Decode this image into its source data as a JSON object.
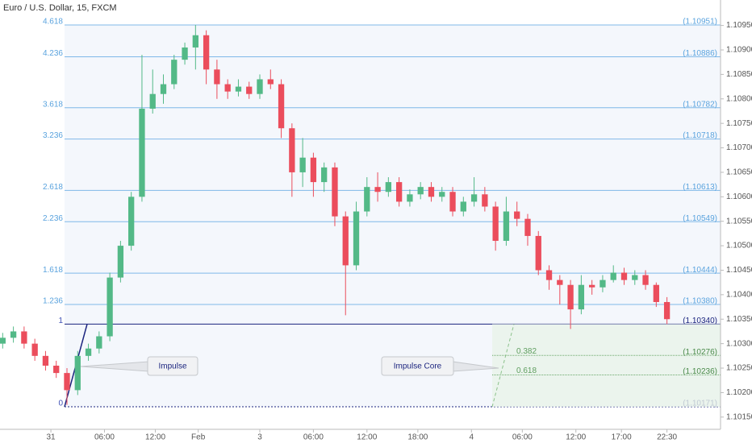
{
  "chart_data": {
    "type": "candlestick",
    "title": "Euro / U.S. Dollar, 15, FXCM",
    "x": [
      0,
      4,
      8,
      12,
      16,
      20,
      24,
      28,
      32,
      36,
      40,
      44,
      48,
      52,
      56,
      60,
      64,
      68,
      72,
      76,
      80,
      84,
      88,
      92,
      96,
      100,
      104,
      108,
      112,
      116,
      120,
      124,
      128,
      132,
      136,
      140,
      144,
      148,
      152,
      156,
      160,
      164,
      168,
      172,
      176,
      180,
      184,
      188,
      192,
      196,
      200,
      204,
      208,
      212,
      216,
      220,
      224,
      228,
      232,
      236,
      240,
      244,
      248
    ],
    "open": [
      1.103,
      1.10312,
      1.10325,
      1.103,
      1.10275,
      1.10255,
      1.1024,
      1.10205,
      1.10275,
      1.1029,
      1.10315,
      1.10435,
      1.105,
      1.106,
      1.1078,
      1.1081,
      1.1083,
      1.1088,
      1.10905,
      1.1093,
      1.1086,
      1.1083,
      1.10815,
      1.10825,
      1.1081,
      1.1084,
      1.1083,
      1.1074,
      1.1065,
      1.1068,
      1.1063,
      1.1066,
      1.1056,
      1.1046,
      1.1057,
      1.1062,
      1.1061,
      1.1063,
      1.1059,
      1.10605,
      1.1062,
      1.106,
      1.1061,
      1.1057,
      1.1059,
      1.10605,
      1.1058,
      1.1051,
      1.1057,
      1.10555,
      1.1052,
      1.1045,
      1.1043,
      1.1042,
      1.1037,
      1.1042,
      1.10415,
      1.1043,
      1.10445,
      1.1043,
      1.1044,
      1.1042,
      1.10385
    ],
    "high": [
      1.10322,
      1.10335,
      1.10335,
      1.1031,
      1.10285,
      1.10265,
      1.1025,
      1.10285,
      1.103,
      1.10325,
      1.10445,
      1.1051,
      1.1061,
      1.1089,
      1.1086,
      1.1085,
      1.1089,
      1.10915,
      1.10951,
      1.1094,
      1.1088,
      1.1084,
      1.1084,
      1.10835,
      1.1085,
      1.1086,
      1.1084,
      1.1075,
      1.1072,
      1.1069,
      1.1067,
      1.1067,
      1.1057,
      1.1059,
      1.1064,
      1.1065,
      1.1064,
      1.1064,
      1.10615,
      1.1063,
      1.1063,
      1.1062,
      1.1062,
      1.106,
      1.1064,
      1.1062,
      1.1059,
      1.106,
      1.1059,
      1.10565,
      1.1053,
      1.1046,
      1.1044,
      1.1043,
      1.1044,
      1.1043,
      1.1044,
      1.1046,
      1.10455,
      1.1045,
      1.1045,
      1.10425,
      1.10395
    ],
    "low": [
      1.1029,
      1.10302,
      1.1029,
      1.10265,
      1.10245,
      1.1023,
      1.10175,
      1.10195,
      1.10265,
      1.1028,
      1.10305,
      1.10425,
      1.1049,
      1.1059,
      1.1077,
      1.1079,
      1.1082,
      1.1087,
      1.1086,
      1.1083,
      1.108,
      1.108,
      1.10805,
      1.108,
      1.108,
      1.1082,
      1.1072,
      1.106,
      1.1062,
      1.106,
      1.1061,
      1.1054,
      1.10358,
      1.1045,
      1.1056,
      1.1059,
      1.106,
      1.1058,
      1.1058,
      1.10595,
      1.1059,
      1.1059,
      1.1056,
      1.1056,
      1.1058,
      1.1057,
      1.1049,
      1.105,
      1.1054,
      1.105,
      1.1044,
      1.1041,
      1.1038,
      1.1033,
      1.1036,
      1.104,
      1.10405,
      1.10425,
      1.1042,
      1.1042,
      1.1041,
      1.10375,
      1.1034
    ],
    "close": [
      1.10312,
      1.10325,
      1.103,
      1.10275,
      1.10255,
      1.1024,
      1.10205,
      1.10275,
      1.1029,
      1.10315,
      1.10435,
      1.105,
      1.106,
      1.1078,
      1.1081,
      1.1083,
      1.1088,
      1.10905,
      1.1093,
      1.1086,
      1.1083,
      1.10815,
      1.10825,
      1.1081,
      1.1084,
      1.1083,
      1.1074,
      1.1065,
      1.1068,
      1.1063,
      1.1066,
      1.1056,
      1.1046,
      1.1057,
      1.1062,
      1.1061,
      1.1063,
      1.1059,
      1.10605,
      1.1062,
      1.106,
      1.1061,
      1.1057,
      1.1059,
      1.10605,
      1.1058,
      1.1051,
      1.1057,
      1.10555,
      1.1052,
      1.1045,
      1.1043,
      1.1042,
      1.1037,
      1.1042,
      1.10415,
      1.1043,
      1.10445,
      1.1043,
      1.1044,
      1.1042,
      1.10385,
      1.1035
    ],
    "up_color": "#53b987",
    "down_color": "#eb4d5c",
    "xlim": [
      -1,
      268
    ],
    "xticks": [
      {
        "value": 18,
        "label": "31"
      },
      {
        "value": 38,
        "label": "06:00"
      },
      {
        "value": 57,
        "label": "12:00"
      },
      {
        "value": 73,
        "label": "Feb"
      },
      {
        "value": 96,
        "label": "3"
      },
      {
        "value": 116,
        "label": "06:00"
      },
      {
        "value": 136,
        "label": "12:00"
      },
      {
        "value": 155,
        "label": "18:00"
      },
      {
        "value": 175,
        "label": "4"
      },
      {
        "value": 194,
        "label": "06:00"
      },
      {
        "value": 214,
        "label": "12:00"
      },
      {
        "value": 231,
        "label": "17:00"
      },
      {
        "value": 248,
        "label": "22:30"
      }
    ],
    "ylim": [
      1.10125,
      1.11002
    ],
    "yticks": [
      {
        "value": 1.1015,
        "label": "1.10150"
      },
      {
        "value": 1.102,
        "label": "1.10200"
      },
      {
        "value": 1.1025,
        "label": "1.10250"
      },
      {
        "value": 1.103,
        "label": "1.10300"
      },
      {
        "value": 1.1035,
        "label": "1.10350"
      },
      {
        "value": 1.104,
        "label": "1.10400"
      },
      {
        "value": 1.1045,
        "label": "1.10450"
      },
      {
        "value": 1.105,
        "label": "1.10500"
      },
      {
        "value": 1.1055,
        "label": "1.10550"
      },
      {
        "value": 1.106,
        "label": "1.10600"
      },
      {
        "value": 1.1065,
        "label": "1.10650"
      },
      {
        "value": 1.107,
        "label": "1.10700"
      },
      {
        "value": 1.1075,
        "label": "1.10750"
      },
      {
        "value": 1.108,
        "label": "1.10800"
      },
      {
        "value": 1.1085,
        "label": "1.10850"
      },
      {
        "value": 1.109,
        "label": "1.10900"
      },
      {
        "value": 1.1095,
        "label": "1.10950"
      }
    ],
    "fib_levels": [
      {
        "ratio": 4.618,
        "price": 1.10951,
        "price_label": "(1.10951)",
        "color": "#7fb8e8"
      },
      {
        "ratio": 4.236,
        "price": 1.10886,
        "price_label": "(1.10886)",
        "color": "#7fb8e8"
      },
      {
        "ratio": 3.618,
        "price": 1.10782,
        "price_label": "(1.10782)",
        "color": "#7fb8e8"
      },
      {
        "ratio": 3.236,
        "price": 1.10718,
        "price_label": "(1.10718)",
        "color": "#7fb8e8"
      },
      {
        "ratio": 2.618,
        "price": 1.10613,
        "price_label": "(1.10613)",
        "color": "#7fb8e8"
      },
      {
        "ratio": 2.236,
        "price": 1.10549,
        "price_label": "(1.10549)",
        "color": "#7fb8e8"
      },
      {
        "ratio": 1.618,
        "price": 1.10444,
        "price_label": "(1.10444)",
        "color": "#7fb8e8"
      },
      {
        "ratio": 1.236,
        "price": 1.1038,
        "price_label": "(1.10380)",
        "color": "#7fb8e8"
      },
      {
        "ratio": 1,
        "price": 1.1034,
        "price_label": "(1.10340)",
        "color": "#1a237e"
      },
      {
        "ratio": 0,
        "price": 1.10171,
        "price_label": "(1.10171)",
        "color": "#1a237e"
      }
    ],
    "core_levels": [
      {
        "ratio": 0.382,
        "price": 1.10276,
        "price_label": "(1.10276)",
        "color": "#6aa86a"
      },
      {
        "ratio": 0.618,
        "price": 1.10236,
        "price_label": "(1.10236)",
        "color": "#6aa86a"
      }
    ],
    "annotations": [
      "Impulse",
      "Impulse Core"
    ]
  }
}
